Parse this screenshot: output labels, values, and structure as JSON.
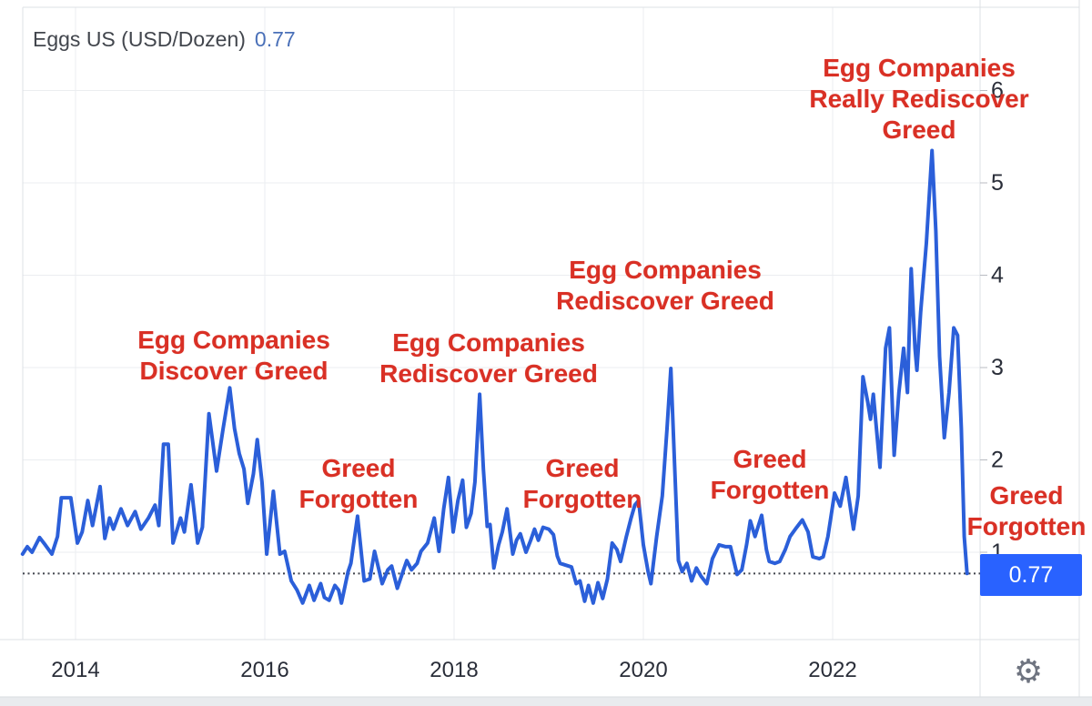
{
  "legend": {
    "title": "Eggs US (USD/Dozen)",
    "value": "0.77"
  },
  "price_badge": "0.77",
  "icons": {
    "gear": "⚙"
  },
  "annotations": [
    {
      "text": "Egg Companies\nDiscover Greed"
    },
    {
      "text": "Egg Companies\nRediscover Greed"
    },
    {
      "text": "Egg Companies\nRediscover Greed"
    },
    {
      "text": "Egg Companies\nReally Rediscover\nGreed"
    },
    {
      "text": "Greed\nForgotten"
    },
    {
      "text": "Greed\nForgotten"
    },
    {
      "text": "Greed\nForgotten"
    },
    {
      "text": "Greed\nForgotten"
    }
  ],
  "chart_data": {
    "type": "line",
    "title": "Eggs US (USD/Dozen)",
    "last_price": 0.77,
    "dotted_line_value": 0.77,
    "x_ticks": [
      2014,
      2016,
      2018,
      2020,
      2022
    ],
    "y_ticks": [
      1,
      2,
      3,
      4,
      5,
      6
    ],
    "x_range": [
      2013.44,
      2023.53
    ],
    "y_visible_range": [
      0.05,
      6.9
    ],
    "grid": true,
    "legend_position": "top-left",
    "line_color": "#2b5fd9",
    "badge_color": "#2962ff",
    "annotation_color": "#d93025",
    "grid_color": "#ebedf0",
    "border_color": "#dde0e4",
    "tick_label_color": "#2a2e39",
    "series": [
      {
        "name": "Eggs US (USD/Dozen)",
        "points": [
          [
            2013.44,
            0.98
          ],
          [
            2013.49,
            1.06
          ],
          [
            2013.54,
            1.0
          ],
          [
            2013.62,
            1.16
          ],
          [
            2013.68,
            1.08
          ],
          [
            2013.75,
            0.98
          ],
          [
            2013.81,
            1.17
          ],
          [
            2013.85,
            1.59
          ],
          [
            2013.95,
            1.59
          ],
          [
            2014.02,
            1.1
          ],
          [
            2014.07,
            1.22
          ],
          [
            2014.13,
            1.56
          ],
          [
            2014.18,
            1.29
          ],
          [
            2014.26,
            1.71
          ],
          [
            2014.31,
            1.15
          ],
          [
            2014.36,
            1.37
          ],
          [
            2014.4,
            1.25
          ],
          [
            2014.48,
            1.47
          ],
          [
            2014.55,
            1.29
          ],
          [
            2014.63,
            1.44
          ],
          [
            2014.69,
            1.25
          ],
          [
            2014.77,
            1.37
          ],
          [
            2014.84,
            1.51
          ],
          [
            2014.88,
            1.29
          ],
          [
            2014.93,
            2.17
          ],
          [
            2014.98,
            2.17
          ],
          [
            2015.03,
            1.1
          ],
          [
            2015.11,
            1.37
          ],
          [
            2015.15,
            1.22
          ],
          [
            2015.22,
            1.73
          ],
          [
            2015.29,
            1.1
          ],
          [
            2015.34,
            1.27
          ],
          [
            2015.41,
            2.5
          ],
          [
            2015.49,
            1.88
          ],
          [
            2015.56,
            2.34
          ],
          [
            2015.63,
            2.78
          ],
          [
            2015.68,
            2.34
          ],
          [
            2015.73,
            2.07
          ],
          [
            2015.78,
            1.9
          ],
          [
            2015.82,
            1.53
          ],
          [
            2015.88,
            1.85
          ],
          [
            2015.92,
            2.22
          ],
          [
            2015.97,
            1.76
          ],
          [
            2016.02,
            0.98
          ],
          [
            2016.09,
            1.66
          ],
          [
            2016.16,
            0.98
          ],
          [
            2016.21,
            1.01
          ],
          [
            2016.28,
            0.69
          ],
          [
            2016.34,
            0.59
          ],
          [
            2016.4,
            0.45
          ],
          [
            2016.47,
            0.64
          ],
          [
            2016.52,
            0.48
          ],
          [
            2016.59,
            0.66
          ],
          [
            2016.63,
            0.51
          ],
          [
            2016.68,
            0.48
          ],
          [
            2016.74,
            0.64
          ],
          [
            2016.78,
            0.59
          ],
          [
            2016.81,
            0.45
          ],
          [
            2016.88,
            0.79
          ],
          [
            2016.91,
            0.88
          ],
          [
            2016.98,
            1.39
          ],
          [
            2017.05,
            0.69
          ],
          [
            2017.11,
            0.71
          ],
          [
            2017.16,
            1.01
          ],
          [
            2017.24,
            0.66
          ],
          [
            2017.3,
            0.81
          ],
          [
            2017.34,
            0.85
          ],
          [
            2017.4,
            0.61
          ],
          [
            2017.46,
            0.79
          ],
          [
            2017.5,
            0.91
          ],
          [
            2017.55,
            0.81
          ],
          [
            2017.61,
            0.88
          ],
          [
            2017.65,
            1.01
          ],
          [
            2017.72,
            1.1
          ],
          [
            2017.79,
            1.37
          ],
          [
            2017.84,
            1.01
          ],
          [
            2017.89,
            1.47
          ],
          [
            2017.94,
            1.81
          ],
          [
            2017.99,
            1.22
          ],
          [
            2018.04,
            1.56
          ],
          [
            2018.09,
            1.78
          ],
          [
            2018.13,
            1.27
          ],
          [
            2018.18,
            1.42
          ],
          [
            2018.22,
            1.76
          ],
          [
            2018.27,
            2.71
          ],
          [
            2018.31,
            1.9
          ],
          [
            2018.35,
            1.28
          ],
          [
            2018.38,
            1.3
          ],
          [
            2018.42,
            0.83
          ],
          [
            2018.47,
            1.08
          ],
          [
            2018.51,
            1.22
          ],
          [
            2018.56,
            1.47
          ],
          [
            2018.62,
            0.98
          ],
          [
            2018.66,
            1.13
          ],
          [
            2018.7,
            1.2
          ],
          [
            2018.76,
            1.0
          ],
          [
            2018.81,
            1.13
          ],
          [
            2018.85,
            1.25
          ],
          [
            2018.89,
            1.13
          ],
          [
            2018.94,
            1.27
          ],
          [
            2019.0,
            1.25
          ],
          [
            2019.05,
            1.19
          ],
          [
            2019.09,
            0.96
          ],
          [
            2019.12,
            0.88
          ],
          [
            2019.18,
            0.86
          ],
          [
            2019.24,
            0.84
          ],
          [
            2019.29,
            0.66
          ],
          [
            2019.33,
            0.69
          ],
          [
            2019.38,
            0.47
          ],
          [
            2019.42,
            0.64
          ],
          [
            2019.47,
            0.45
          ],
          [
            2019.52,
            0.67
          ],
          [
            2019.57,
            0.5
          ],
          [
            2019.62,
            0.71
          ],
          [
            2019.67,
            1.1
          ],
          [
            2019.72,
            1.03
          ],
          [
            2019.76,
            0.9
          ],
          [
            2019.82,
            1.17
          ],
          [
            2019.87,
            1.37
          ],
          [
            2019.91,
            1.51
          ],
          [
            2019.95,
            1.56
          ],
          [
            2020.0,
            1.08
          ],
          [
            2020.05,
            0.79
          ],
          [
            2020.08,
            0.66
          ],
          [
            2020.14,
            1.17
          ],
          [
            2020.2,
            1.61
          ],
          [
            2020.25,
            2.34
          ],
          [
            2020.29,
            2.99
          ],
          [
            2020.33,
            1.95
          ],
          [
            2020.37,
            0.91
          ],
          [
            2020.41,
            0.79
          ],
          [
            2020.46,
            0.88
          ],
          [
            2020.51,
            0.69
          ],
          [
            2020.56,
            0.83
          ],
          [
            2020.61,
            0.74
          ],
          [
            2020.67,
            0.66
          ],
          [
            2020.73,
            0.93
          ],
          [
            2020.8,
            1.08
          ],
          [
            2020.87,
            1.06
          ],
          [
            2020.92,
            1.06
          ],
          [
            2020.99,
            0.76
          ],
          [
            2021.04,
            0.81
          ],
          [
            2021.09,
            1.08
          ],
          [
            2021.13,
            1.34
          ],
          [
            2021.18,
            1.17
          ],
          [
            2021.25,
            1.4
          ],
          [
            2021.3,
            1.03
          ],
          [
            2021.33,
            0.9
          ],
          [
            2021.39,
            0.88
          ],
          [
            2021.44,
            0.9
          ],
          [
            2021.5,
            1.03
          ],
          [
            2021.55,
            1.17
          ],
          [
            2021.62,
            1.27
          ],
          [
            2021.68,
            1.35
          ],
          [
            2021.74,
            1.22
          ],
          [
            2021.79,
            0.95
          ],
          [
            2021.86,
            0.93
          ],
          [
            2021.9,
            0.95
          ],
          [
            2021.95,
            1.17
          ],
          [
            2022.02,
            1.64
          ],
          [
            2022.08,
            1.5
          ],
          [
            2022.14,
            1.81
          ],
          [
            2022.22,
            1.25
          ],
          [
            2022.27,
            1.61
          ],
          [
            2022.32,
            2.9
          ],
          [
            2022.37,
            2.63
          ],
          [
            2022.4,
            2.44
          ],
          [
            2022.43,
            2.71
          ],
          [
            2022.5,
            1.92
          ],
          [
            2022.56,
            3.21
          ],
          [
            2022.6,
            3.43
          ],
          [
            2022.65,
            2.05
          ],
          [
            2022.7,
            2.73
          ],
          [
            2022.75,
            3.21
          ],
          [
            2022.79,
            2.73
          ],
          [
            2022.83,
            4.07
          ],
          [
            2022.87,
            3.21
          ],
          [
            2022.89,
            2.97
          ],
          [
            2022.93,
            3.6
          ],
          [
            2022.99,
            4.35
          ],
          [
            2023.05,
            5.35
          ],
          [
            2023.09,
            4.48
          ],
          [
            2023.13,
            3.12
          ],
          [
            2023.18,
            2.24
          ],
          [
            2023.23,
            2.73
          ],
          [
            2023.28,
            3.43
          ],
          [
            2023.32,
            3.35
          ],
          [
            2023.36,
            2.34
          ],
          [
            2023.39,
            1.17
          ],
          [
            2023.42,
            0.77
          ]
        ]
      }
    ]
  }
}
